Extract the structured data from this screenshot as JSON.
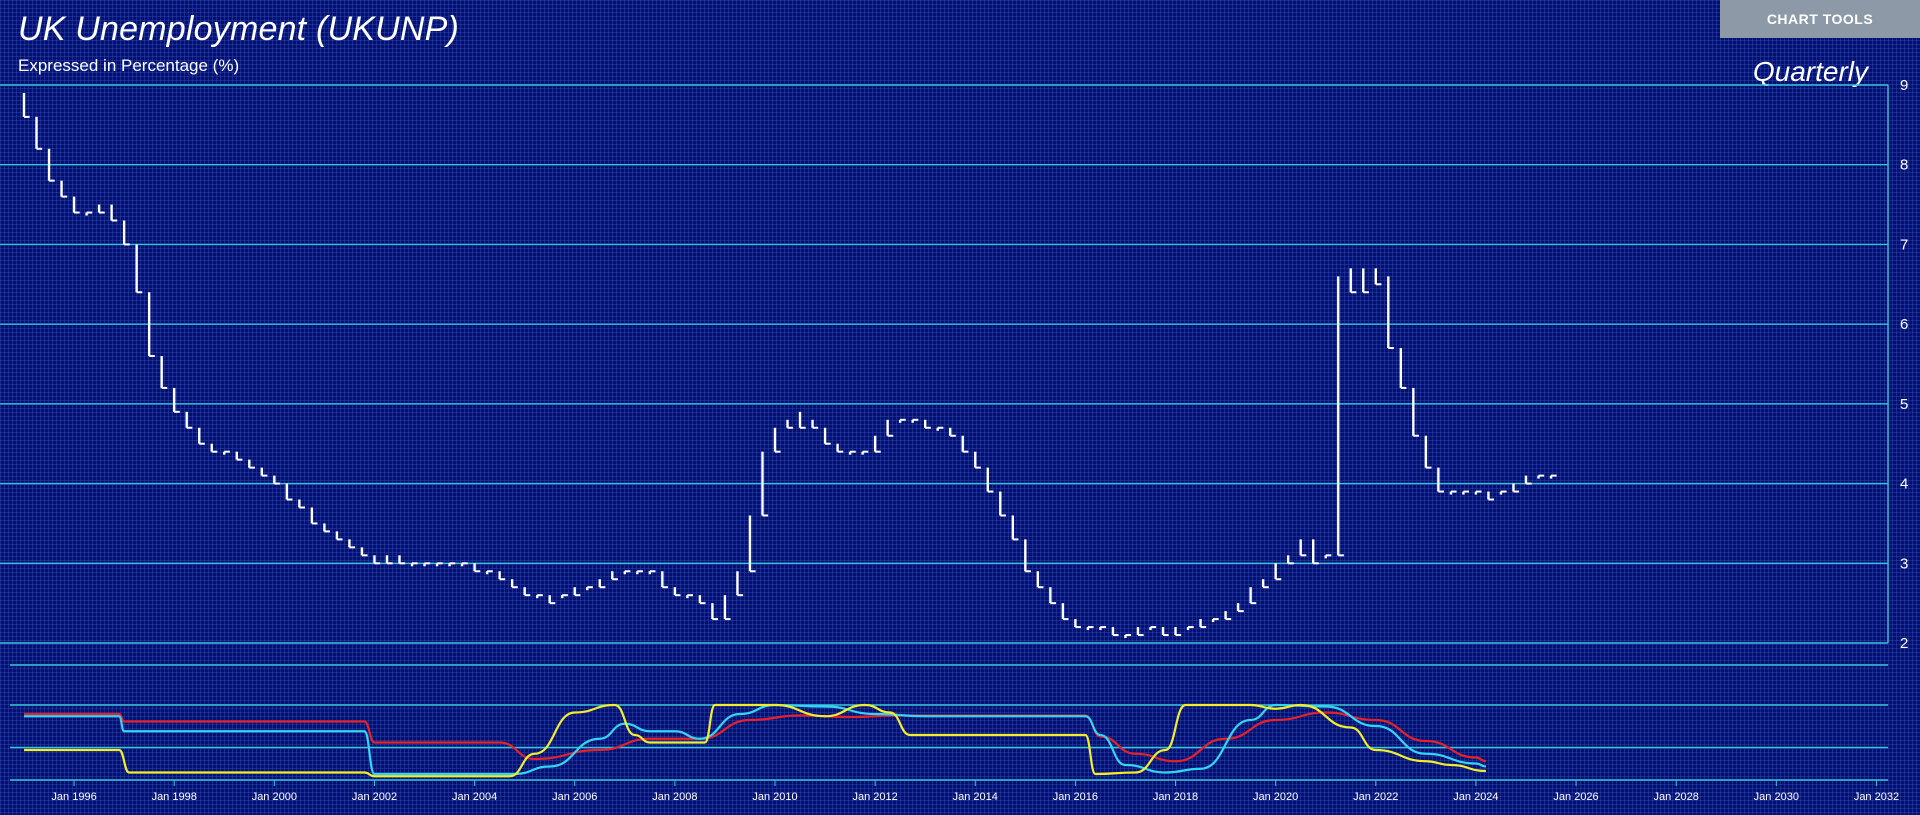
{
  "header": {
    "title": "UK Unemployment (UKUNP)",
    "subtitle": "Expressed in Percentage (%)",
    "frequency": "Quarterly",
    "tools_label": "CHART TOOLS"
  },
  "colors": {
    "background": "#04106e",
    "gridline": "#37c4d6",
    "price": "#ffffff",
    "red_line": "#e8202a",
    "cyan_line": "#33d6f2",
    "yellow_line": "#f2ee2a"
  },
  "chart_data": [
    {
      "type": "step-bar",
      "title": "UK Unemployment (UKUNP)",
      "subtitle": "Expressed in Percentage (%)",
      "ylim": [
        2,
        9
      ],
      "yticks": [
        2,
        3,
        4,
        5,
        6,
        7,
        8,
        9
      ],
      "xlim": [
        1995.0,
        2032.75
      ],
      "xticks": [
        "Jan 1996",
        "Jan 1998",
        "Jan 2000",
        "Jan 2002",
        "Jan 2004",
        "Jan 2006",
        "Jan 2008",
        "Jan 2010",
        "Jan 2012",
        "Jan 2014",
        "Jan 2016",
        "Jan 2018",
        "Jan 2020",
        "Jan 2022",
        "Jan 2024",
        "Jan 2026",
        "Jan 2028",
        "Jan 2030",
        "Jan 2032"
      ],
      "grid": true,
      "start": "1995 Q1",
      "bars": [
        [
          8.9,
          8.6
        ],
        [
          8.6,
          8.2
        ],
        [
          8.2,
          7.8
        ],
        [
          7.8,
          7.6
        ],
        [
          7.6,
          7.4
        ],
        [
          7.4,
          7.4
        ],
        [
          7.5,
          7.4
        ],
        [
          7.5,
          7.3
        ],
        [
          7.3,
          7.0
        ],
        [
          7.0,
          6.4
        ],
        [
          6.4,
          5.6
        ],
        [
          5.6,
          5.2
        ],
        [
          5.2,
          4.9
        ],
        [
          4.9,
          4.7
        ],
        [
          4.7,
          4.5
        ],
        [
          4.5,
          4.4
        ],
        [
          4.4,
          4.4
        ],
        [
          4.4,
          4.3
        ],
        [
          4.3,
          4.2
        ],
        [
          4.2,
          4.1
        ],
        [
          4.1,
          4.0
        ],
        [
          4.0,
          3.8
        ],
        [
          3.8,
          3.7
        ],
        [
          3.7,
          3.5
        ],
        [
          3.5,
          3.4
        ],
        [
          3.4,
          3.3
        ],
        [
          3.3,
          3.2
        ],
        [
          3.2,
          3.1
        ],
        [
          3.1,
          3.0
        ],
        [
          3.1,
          3.0
        ],
        [
          3.1,
          3.0
        ],
        [
          3.0,
          3.0
        ],
        [
          3.0,
          3.0
        ],
        [
          3.0,
          3.0
        ],
        [
          3.0,
          3.0
        ],
        [
          3.0,
          3.0
        ],
        [
          3.0,
          2.9
        ],
        [
          2.9,
          2.9
        ],
        [
          2.9,
          2.8
        ],
        [
          2.8,
          2.7
        ],
        [
          2.7,
          2.6
        ],
        [
          2.6,
          2.6
        ],
        [
          2.6,
          2.5
        ],
        [
          2.6,
          2.6
        ],
        [
          2.7,
          2.6
        ],
        [
          2.7,
          2.7
        ],
        [
          2.8,
          2.7
        ],
        [
          2.9,
          2.8
        ],
        [
          2.9,
          2.9
        ],
        [
          2.9,
          2.9
        ],
        [
          2.9,
          2.9
        ],
        [
          2.9,
          2.7
        ],
        [
          2.7,
          2.6
        ],
        [
          2.6,
          2.6
        ],
        [
          2.6,
          2.5
        ],
        [
          2.5,
          2.3
        ],
        [
          2.6,
          2.3
        ],
        [
          2.9,
          2.6
        ],
        [
          3.6,
          2.9
        ],
        [
          4.4,
          3.6
        ],
        [
          4.7,
          4.4
        ],
        [
          4.8,
          4.7
        ],
        [
          4.9,
          4.7
        ],
        [
          4.8,
          4.7
        ],
        [
          4.7,
          4.5
        ],
        [
          4.5,
          4.4
        ],
        [
          4.4,
          4.4
        ],
        [
          4.4,
          4.4
        ],
        [
          4.6,
          4.4
        ],
        [
          4.8,
          4.6
        ],
        [
          4.8,
          4.8
        ],
        [
          4.8,
          4.8
        ],
        [
          4.8,
          4.7
        ],
        [
          4.7,
          4.7
        ],
        [
          4.7,
          4.6
        ],
        [
          4.6,
          4.4
        ],
        [
          4.4,
          4.2
        ],
        [
          4.2,
          3.9
        ],
        [
          3.9,
          3.6
        ],
        [
          3.6,
          3.3
        ],
        [
          3.3,
          2.9
        ],
        [
          2.9,
          2.7
        ],
        [
          2.7,
          2.5
        ],
        [
          2.5,
          2.3
        ],
        [
          2.3,
          2.2
        ],
        [
          2.2,
          2.2
        ],
        [
          2.2,
          2.2
        ],
        [
          2.2,
          2.1
        ],
        [
          2.1,
          2.1
        ],
        [
          2.2,
          2.1
        ],
        [
          2.2,
          2.2
        ],
        [
          2.2,
          2.1
        ],
        [
          2.2,
          2.1
        ],
        [
          2.2,
          2.2
        ],
        [
          2.3,
          2.2
        ],
        [
          2.3,
          2.3
        ],
        [
          2.4,
          2.3
        ],
        [
          2.5,
          2.4
        ],
        [
          2.7,
          2.5
        ],
        [
          2.8,
          2.7
        ],
        [
          3.0,
          2.8
        ],
        [
          3.1,
          3.0
        ],
        [
          3.3,
          3.1
        ],
        [
          3.3,
          3.0
        ],
        [
          3.1,
          3.1
        ],
        [
          6.6,
          3.1
        ],
        [
          6.7,
          6.4
        ],
        [
          6.7,
          6.4
        ],
        [
          6.7,
          6.5
        ],
        [
          6.6,
          5.7
        ],
        [
          5.7,
          5.2
        ],
        [
          5.2,
          4.6
        ],
        [
          4.6,
          4.2
        ],
        [
          4.2,
          3.9
        ],
        [
          3.9,
          3.9
        ],
        [
          3.9,
          3.9
        ],
        [
          3.9,
          3.9
        ],
        [
          3.9,
          3.8
        ],
        [
          3.9,
          3.9
        ],
        [
          4.0,
          3.9
        ],
        [
          4.1,
          4.0
        ],
        [
          4.1,
          4.1
        ],
        [
          4.1,
          4.1
        ]
      ]
    },
    {
      "type": "line",
      "panel": "indicator",
      "ylim": [
        0,
        100
      ],
      "series": [
        {
          "color": "#e8202a",
          "values": [
            [
              1995.0,
              88
            ],
            [
              1996.9,
              88
            ],
            [
              1997.0,
              78
            ],
            [
              2001.8,
              78
            ],
            [
              2002.0,
              50
            ],
            [
              2004.5,
              50
            ],
            [
              2005.2,
              28
            ],
            [
              2006.5,
              40
            ],
            [
              2007.5,
              55
            ],
            [
              2008.5,
              55
            ],
            [
              2009.5,
              80
            ],
            [
              2010.5,
              86
            ],
            [
              2011.5,
              84
            ],
            [
              2012.5,
              86
            ],
            [
              2014.5,
              86
            ],
            [
              2016.2,
              86
            ],
            [
              2016.5,
              58
            ],
            [
              2017.2,
              35
            ],
            [
              2018.0,
              25
            ],
            [
              2019.0,
              55
            ],
            [
              2020.0,
              80
            ],
            [
              2021.0,
              90
            ],
            [
              2022.0,
              80
            ],
            [
              2023.0,
              52
            ],
            [
              2024.0,
              30
            ],
            [
              2024.2,
              25
            ]
          ]
        },
        {
          "color": "#33d6f2",
          "values": [
            [
              1995.0,
              85
            ],
            [
              1996.9,
              85
            ],
            [
              1997.0,
              65
            ],
            [
              2001.8,
              65
            ],
            [
              2002.0,
              8
            ],
            [
              2004.8,
              8
            ],
            [
              2005.5,
              18
            ],
            [
              2006.5,
              55
            ],
            [
              2007.0,
              75
            ],
            [
              2007.5,
              65
            ],
            [
              2008.0,
              65
            ],
            [
              2008.5,
              55
            ],
            [
              2009.3,
              88
            ],
            [
              2010.0,
              100
            ],
            [
              2011.0,
              98
            ],
            [
              2012.0,
              88
            ],
            [
              2013.0,
              85
            ],
            [
              2016.2,
              85
            ],
            [
              2016.5,
              60
            ],
            [
              2017.0,
              20
            ],
            [
              2017.8,
              10
            ],
            [
              2018.5,
              15
            ],
            [
              2019.5,
              80
            ],
            [
              2020.0,
              100
            ],
            [
              2021.0,
              98
            ],
            [
              2022.0,
              72
            ],
            [
              2023.0,
              35
            ],
            [
              2024.0,
              22
            ],
            [
              2024.2,
              18
            ]
          ]
        },
        {
          "color": "#f2ee2a",
          "values": [
            [
              1995.0,
              40
            ],
            [
              1996.9,
              40
            ],
            [
              1997.1,
              10
            ],
            [
              2001.8,
              10
            ],
            [
              2002.0,
              5
            ],
            [
              2004.7,
              5
            ],
            [
              2005.2,
              35
            ],
            [
              2006.0,
              90
            ],
            [
              2006.8,
              100
            ],
            [
              2007.2,
              60
            ],
            [
              2007.5,
              50
            ],
            [
              2008.6,
              50
            ],
            [
              2008.8,
              100
            ],
            [
              2010.0,
              100
            ],
            [
              2011.0,
              85
            ],
            [
              2011.8,
              100
            ],
            [
              2012.3,
              90
            ],
            [
              2012.7,
              60
            ],
            [
              2016.2,
              60
            ],
            [
              2016.4,
              8
            ],
            [
              2017.2,
              10
            ],
            [
              2017.8,
              40
            ],
            [
              2018.2,
              100
            ],
            [
              2019.5,
              100
            ],
            [
              2020.0,
              95
            ],
            [
              2020.5,
              100
            ],
            [
              2021.5,
              70
            ],
            [
              2022.0,
              40
            ],
            [
              2023.0,
              25
            ],
            [
              2023.5,
              20
            ],
            [
              2024.2,
              12
            ]
          ]
        }
      ]
    }
  ]
}
